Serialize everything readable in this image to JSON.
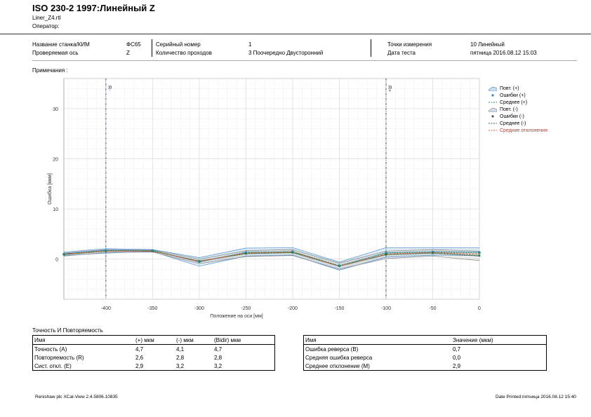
{
  "report": {
    "title": "ISO 230-2 1997:Линейный Z",
    "file": "Liner_Z4.rtl",
    "operator_label": "Оператор:"
  },
  "header": {
    "machine_label": "Название станка/КИМ",
    "machine_value": "ФС65",
    "axis_label": "Проверяемая ось",
    "axis_value": "Z",
    "serial_label": "Серийный номер",
    "serial_value": "1",
    "runs_label": "Количество проходов",
    "runs_value": "3 Поочередно Двусторонний",
    "points_label": "Точки измерения",
    "points_value": "10 Линейный",
    "date_label": "Дата теста",
    "date_value": "пятница 2016.08.12 15:03"
  },
  "notes_label": "Примечания :",
  "chart_data": {
    "type": "line",
    "xlabel": "Положение на оси [мм]",
    "ylabel": "Ошибка [мкм]",
    "xlim": [
      -445,
      0
    ],
    "ylim": [
      -8,
      36
    ],
    "x_ticks": [
      -400,
      -350,
      -300,
      -250,
      -200,
      -150,
      -100,
      -50,
      0
    ],
    "y_ticks": [
      0,
      10,
      20,
      30
    ],
    "markers": [
      {
        "x": -400,
        "label": "R-"
      },
      {
        "x": -100,
        "label": "R+"
      }
    ],
    "x": [
      -445,
      -400,
      -350,
      -300,
      -250,
      -200,
      -150,
      -100,
      -50,
      0
    ],
    "series": [
      {
        "name": "Повт. (+)",
        "upper": [
          1.4,
          2.1,
          1.9,
          0.3,
          2.2,
          2.3,
          -0.6,
          2.3,
          2.3,
          2.3
        ],
        "lower": [
          0.7,
          1.2,
          1.5,
          -1.4,
          0.6,
          0.8,
          -2.2,
          0.4,
          0.8,
          0.7
        ],
        "color": "#4a90d9"
      },
      {
        "name": "Ошибки (+)",
        "values": [
          1.1,
          1.8,
          1.7,
          -0.6,
          1.4,
          1.5,
          -1.4,
          1.3,
          1.5,
          1.4
        ],
        "color": "#2e86c1"
      },
      {
        "name": "Среднее (+)",
        "values": [
          1.0,
          1.7,
          1.7,
          -0.5,
          1.3,
          1.5,
          -1.3,
          1.2,
          1.4,
          1.3
        ],
        "color": "#2e8b57"
      },
      {
        "name": "Повт. (-)",
        "upper": [
          1.2,
          1.9,
          1.8,
          0.0,
          1.7,
          1.9,
          -0.8,
          1.6,
          1.9,
          1.6
        ],
        "lower": [
          0.6,
          1.3,
          1.4,
          -0.9,
          0.5,
          0.7,
          -2.0,
          0.1,
          0.6,
          -0.3
        ],
        "color": "#8a8a8a"
      },
      {
        "name": "Ошибки (-)",
        "values": [
          0.9,
          1.6,
          1.6,
          -0.4,
          1.1,
          1.3,
          -1.4,
          0.9,
          1.2,
          0.6
        ],
        "color": "#555555"
      },
      {
        "name": "Среднее (-)",
        "values": [
          0.9,
          1.6,
          1.6,
          -0.4,
          1.1,
          1.3,
          -1.4,
          0.9,
          1.2,
          0.7
        ],
        "color": "#1b7a3a"
      },
      {
        "name": "Средние отклонения",
        "values": [
          1.0,
          1.6,
          1.6,
          -0.5,
          1.2,
          1.4,
          -1.4,
          1.0,
          1.3,
          1.0
        ],
        "color": "#e4572e"
      }
    ]
  },
  "accuracy_table": {
    "title": "Точность И Повторяемость",
    "headers": [
      "Имя",
      "(+) мкм",
      "(-) мкм",
      "(Bidir) мкм"
    ],
    "rows": [
      [
        "Точность (A)",
        "4,7",
        "4,1",
        "4,7"
      ],
      [
        "Повторяемость (R)",
        "2,6",
        "2,8",
        "2,8"
      ],
      [
        "Сист. откл. (E)",
        "2,9",
        "3,2",
        "3,2"
      ]
    ]
  },
  "reversal_table": {
    "headers": [
      "Имя",
      "Значение (мкм)"
    ],
    "rows": [
      [
        "Ошибка реверса (B)",
        "0,7"
      ],
      [
        "Средняя ошибка реверса",
        "0,0"
      ],
      [
        "Среднее отклонение (M)",
        "2,9"
      ]
    ]
  },
  "footer": {
    "left": "Renishaw plc XCal-View 2.4.5806.10835",
    "right": "Date Printed:пятница 2016.08.12 15:40"
  }
}
